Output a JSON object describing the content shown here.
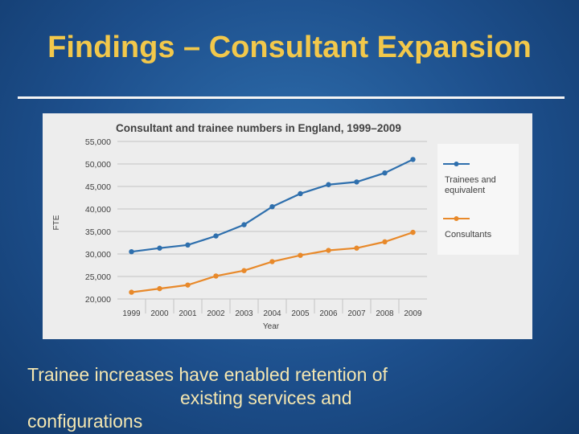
{
  "slide": {
    "title": "Findings – Consultant Expansion",
    "body_lines": [
      "Trainee increases have enabled retention of",
      "existing services and",
      "configurations"
    ]
  },
  "colors": {
    "title": "#f2c84b",
    "trainees": "#2e6fad",
    "consultants": "#e8892a"
  },
  "chart_data": {
    "type": "line",
    "title": "Consultant and trainee numbers in England, 1999–2009",
    "xlabel": "Year",
    "ylabel": "FTE",
    "x": [
      "1999",
      "2000",
      "2001",
      "2002",
      "2003",
      "2004",
      "2005",
      "2006",
      "2007",
      "2008",
      "2009"
    ],
    "yticks": [
      "20,000",
      "25,000",
      "30,000",
      "35,000",
      "40,000",
      "45,000",
      "50,000",
      "55,000"
    ],
    "ylim": [
      20000,
      55000
    ],
    "grid": true,
    "legend_position": "right",
    "series": [
      {
        "name": "Trainees and equivalent",
        "legend_lines": [
          "Trainees and",
          "equivalent"
        ],
        "values": [
          30500,
          31300,
          32000,
          34000,
          36500,
          40500,
          43400,
          45400,
          46000,
          48000,
          51000
        ]
      },
      {
        "name": "Consultants",
        "legend_lines": [
          "Consultants"
        ],
        "values": [
          21500,
          22300,
          23100,
          25100,
          26300,
          28300,
          29700,
          30800,
          31300,
          32700,
          34800
        ]
      }
    ]
  }
}
